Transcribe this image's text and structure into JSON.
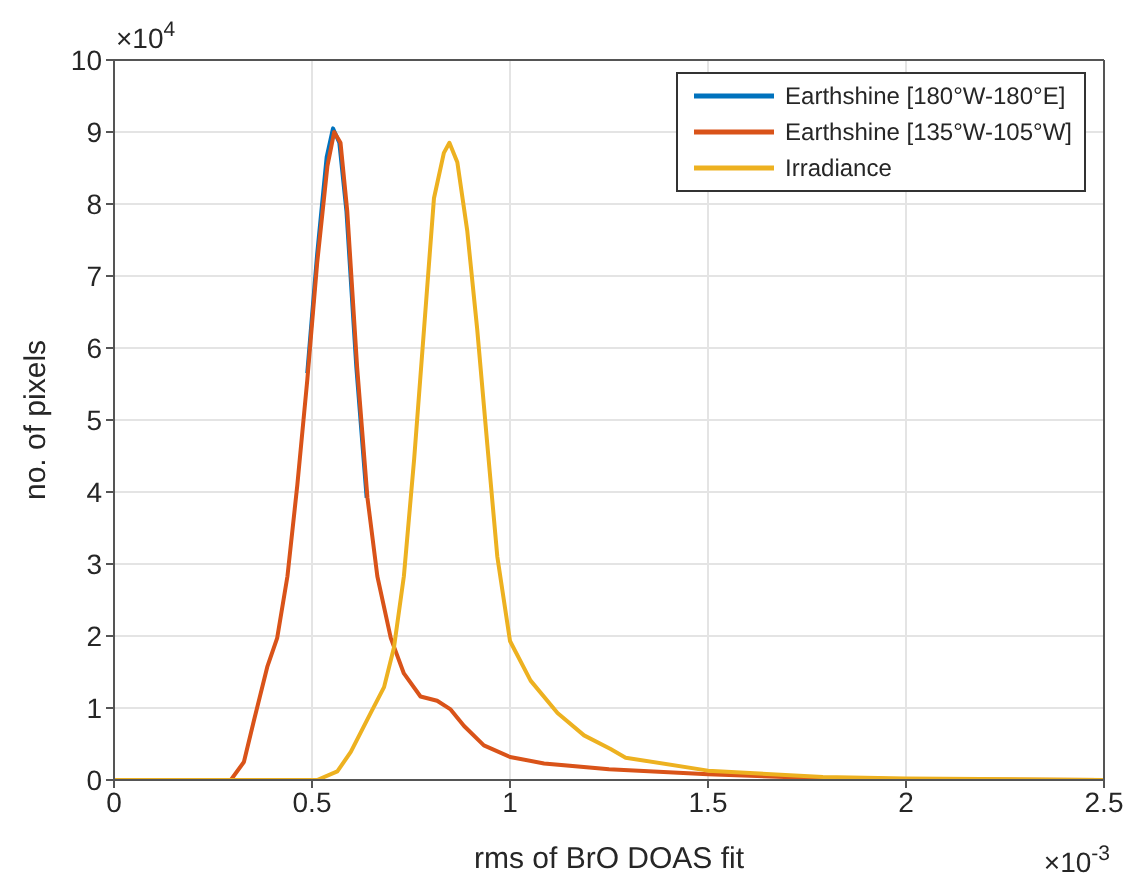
{
  "chart_data": {
    "type": "line",
    "xlabel": "rms of BrO DOAS fit",
    "ylabel": "no. of pixels",
    "annotations": [
      "×10$^{4}$",
      "×10$^{-3}$"
    ],
    "xlim": [
      0,
      2.5
    ],
    "xticks": [
      0,
      0.5,
      1,
      1.5,
      2,
      2.5
    ],
    "ylim": [
      0,
      10
    ],
    "yticks": [
      0,
      1,
      2,
      3,
      4,
      5,
      6,
      7,
      8,
      9,
      10
    ],
    "grid": true,
    "legend": "top right",
    "marker": "none",
    "line_style": "solid",
    "series": [
      {
        "name": "Earthshine [180°W-180°E]",
        "color": "#0072bd",
        "x": [
          0.488,
          0.513,
          0.537,
          0.553,
          0.569,
          0.587,
          0.612,
          0.638
        ],
        "values": [
          5.65,
          7.3,
          8.65,
          9.05,
          8.85,
          7.9,
          5.73,
          3.92
        ]
      },
      {
        "name": "Earthshine [135°W-105°W]",
        "color": "#d95319",
        "x": [
          0,
          0.295,
          0.328,
          0.354,
          0.387,
          0.412,
          0.438,
          0.463,
          0.488,
          0.513,
          0.539,
          0.556,
          0.572,
          0.589,
          0.614,
          0.64,
          0.665,
          0.699,
          0.732,
          0.774,
          0.816,
          0.85,
          0.884,
          0.934,
          1,
          1.086,
          1.25,
          1.5,
          1.75,
          2,
          2.5
        ],
        "values": [
          0,
          0,
          0.25,
          0.84,
          1.57,
          1.97,
          2.83,
          4.1,
          5.55,
          7.18,
          8.53,
          9.0,
          8.85,
          7.9,
          5.73,
          3.92,
          2.83,
          1.97,
          1.48,
          1.16,
          1.1,
          0.98,
          0.75,
          0.48,
          0.32,
          0.23,
          0.15,
          0.08,
          0.03,
          0.01,
          0
        ]
      },
      {
        "name": "Irradiance",
        "color": "#edb120",
        "x": [
          0,
          0.513,
          0.564,
          0.598,
          0.648,
          0.682,
          0.707,
          0.732,
          0.758,
          0.783,
          0.808,
          0.833,
          0.847,
          0.867,
          0.892,
          0.917,
          0.943,
          0.968,
          1,
          1.052,
          1.12,
          1.187,
          1.254,
          1.292,
          1.5,
          1.79,
          2,
          2.5
        ],
        "values": [
          0,
          0,
          0.12,
          0.39,
          0.93,
          1.29,
          1.84,
          2.83,
          4.46,
          6.27,
          8.08,
          8.71,
          8.85,
          8.58,
          7.63,
          6.27,
          4.64,
          3.1,
          1.93,
          1.38,
          0.93,
          0.62,
          0.43,
          0.31,
          0.13,
          0.04,
          0.02,
          0
        ]
      }
    ]
  }
}
